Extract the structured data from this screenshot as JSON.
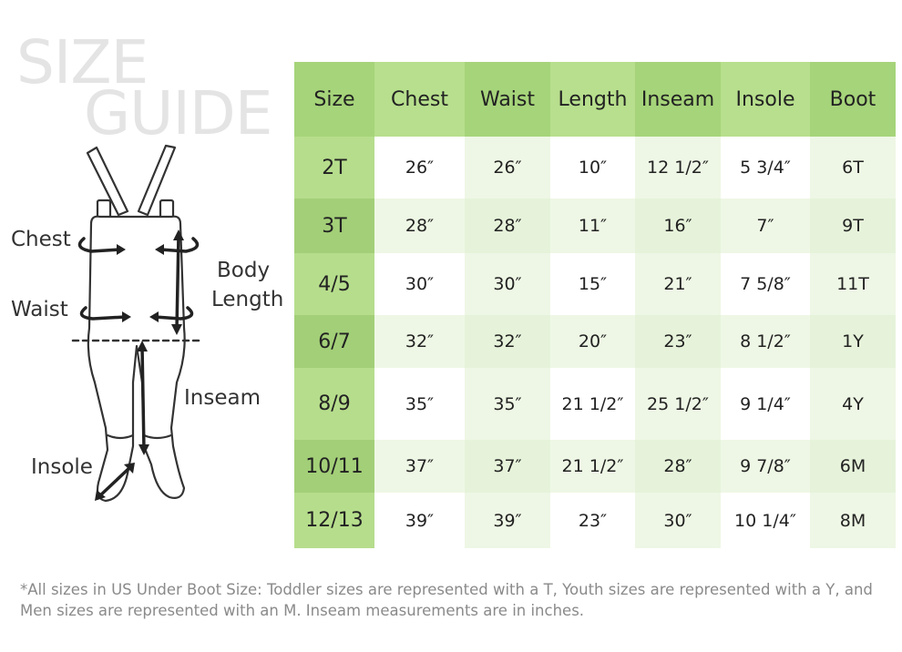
{
  "title": {
    "line1": "SIZE",
    "line2": "GUIDE"
  },
  "diagram_labels": {
    "chest": "Chest",
    "waist": "Waist",
    "body": "Body",
    "length": "Length",
    "inseam": "Inseam",
    "insole": "Insole"
  },
  "table": {
    "headers": [
      "Size",
      "Chest",
      "Waist",
      "Length",
      "Inseam",
      "Insole",
      "Boot"
    ],
    "rows": [
      [
        "2T",
        "26″",
        "26″",
        "10″",
        "12 1/2″",
        "5 3/4″",
        "6T"
      ],
      [
        "3T",
        "28″",
        "28″",
        "11″",
        "16″",
        "7″",
        "9T"
      ],
      [
        "4/5",
        "30″",
        "30″",
        "15″",
        "21″",
        "7 5/8″",
        "11T"
      ],
      [
        "6/7",
        "32″",
        "32″",
        "20″",
        "23″",
        "8 1/2″",
        "1Y"
      ],
      [
        "8/9",
        "35″",
        "35″",
        "21 1/2″",
        "25 1/2″",
        "9 1/4″",
        "4Y"
      ],
      [
        "10/11",
        "37″",
        "37″",
        "21 1/2″",
        "28″",
        "9 7/8″",
        "6M"
      ],
      [
        "12/13",
        "39″",
        "39″",
        "23″",
        "30″",
        "10 1/4″",
        "8M"
      ]
    ]
  },
  "footnote": "*All sizes in US Under Boot Size: Toddler sizes are represented with a T, Youth sizes are represented with a Y, and Men sizes are represented with an M. Inseam measurements are in inches.",
  "colors": {
    "header_green": "#a6d47a",
    "size_col_green": "#b6dd8c",
    "pale_green": "#eef7e5",
    "title_gray": "#e4e4e4"
  }
}
